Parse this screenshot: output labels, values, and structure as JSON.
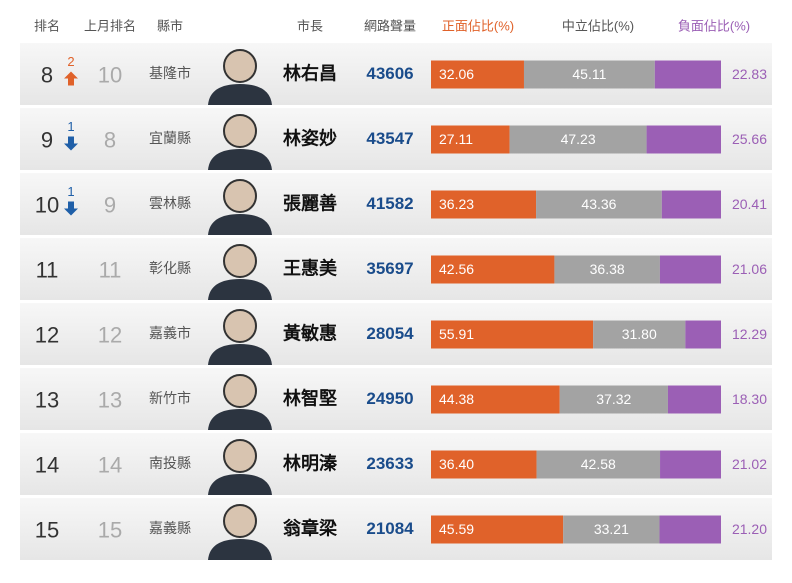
{
  "table": {
    "headers": [
      "排名",
      "上月排名",
      "縣市",
      "市長",
      "網路聲量",
      "正面佔比(%)",
      "中立佔比(%)",
      "負面佔比(%)"
    ],
    "rows": [
      {
        "rank": 8,
        "change": 2,
        "change_dir": "up",
        "last_rank": 10,
        "county": "基隆市",
        "mayor": "林右昌",
        "volume": 43606,
        "positive": 32.06,
        "neutral": 45.11,
        "negative": 22.83
      },
      {
        "rank": 9,
        "change": 1,
        "change_dir": "down",
        "last_rank": 8,
        "county": "宜蘭縣",
        "mayor": "林姿妙",
        "volume": 43547,
        "positive": 27.11,
        "neutral": 47.23,
        "negative": 25.66
      },
      {
        "rank": 10,
        "change": 1,
        "change_dir": "down",
        "last_rank": 9,
        "county": "雲林縣",
        "mayor": "張麗善",
        "volume": 41582,
        "positive": 36.23,
        "neutral": 43.36,
        "negative": 20.41
      },
      {
        "rank": 11,
        "last_rank": 11,
        "county": "彰化縣",
        "mayor": "王惠美",
        "volume": 35697,
        "positive": 42.56,
        "neutral": 36.38,
        "negative": 21.06
      },
      {
        "rank": 12,
        "last_rank": 12,
        "county": "嘉義市",
        "mayor": "黃敏惠",
        "volume": 28054,
        "positive": 55.91,
        "neutral": 31.8,
        "neutral_label": "31.80",
        "negative": 12.29
      },
      {
        "rank": 13,
        "last_rank": 13,
        "county": "新竹市",
        "mayor": "林智堅",
        "volume": 24950,
        "positive": 44.38,
        "neutral": 37.32,
        "negative": 18.3,
        "negative_label": "18.30"
      },
      {
        "rank": 14,
        "last_rank": 14,
        "county": "南投縣",
        "mayor": "林明溱",
        "volume": 23633,
        "positive": 36.4,
        "positive_label": "36.40",
        "neutral": 42.58,
        "negative": 21.02
      },
      {
        "rank": 15,
        "last_rank": 15,
        "county": "嘉義縣",
        "mayor": "翁章梁",
        "volume": 21084,
        "positive": 45.59,
        "neutral": 33.21,
        "negative": 21.2,
        "negative_label": "21.20"
      }
    ],
    "colors": {
      "positive": "#e0622a",
      "neutral": "#a3a3a3",
      "negative": "#9b5fb5",
      "up": "#e0622a",
      "down": "#1f5fa8"
    }
  }
}
